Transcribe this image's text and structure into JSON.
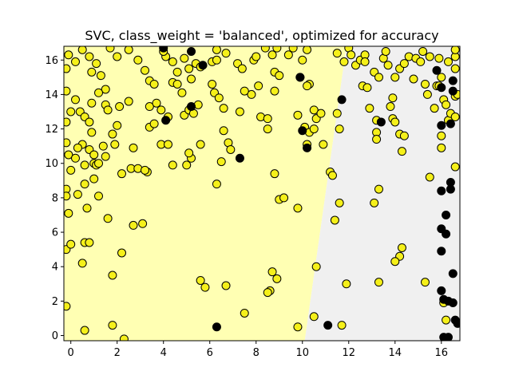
{
  "chart_data": {
    "type": "scatter",
    "title": "SVC, class_weight = 'balanced', optimized for accuracy",
    "xlabel": "",
    "ylabel": "",
    "xlim": [
      -0.3,
      16.8
    ],
    "ylim": [
      -0.3,
      16.8
    ],
    "x_ticks": [
      0,
      2,
      4,
      6,
      8,
      10,
      12,
      14,
      16
    ],
    "y_ticks": [
      0,
      2,
      4,
      6,
      8,
      10,
      12,
      14,
      16
    ],
    "grid": false,
    "colors": {
      "majority_point": "#f5f01a",
      "minority_point": "#000000",
      "majority_region": "#ffffb3",
      "minority_region": "#f0f0f0",
      "point_edge": "#000000"
    },
    "decision_boundary": [
      [
        10.1,
        -0.3
      ],
      [
        11.9,
        16.8
      ]
    ],
    "series": [
      {
        "points": [
          [
            -0.2,
            15.5
          ],
          [
            -0.1,
            16.3
          ],
          [
            -0.2,
            14.2
          ],
          [
            0.0,
            13.0
          ],
          [
            -0.2,
            12.4
          ],
          [
            -0.2,
            11.2
          ],
          [
            -0.1,
            10.5
          ],
          [
            0.0,
            9.6
          ],
          [
            0.2,
            10.3
          ],
          [
            -0.2,
            8.5
          ],
          [
            -0.2,
            8.1
          ],
          [
            0.3,
            8.2
          ],
          [
            -0.1,
            7.1
          ],
          [
            -0.2,
            5.0
          ],
          [
            0.0,
            5.3
          ],
          [
            0.6,
            5.4
          ],
          [
            0.8,
            5.4
          ],
          [
            0.5,
            4.2
          ],
          [
            0.6,
            0.3
          ],
          [
            -0.2,
            1.7
          ],
          [
            0.2,
            13.7
          ],
          [
            0.4,
            13.0
          ],
          [
            0.6,
            12.7
          ],
          [
            0.8,
            12.4
          ],
          [
            0.9,
            11.8
          ],
          [
            0.5,
            11.1
          ],
          [
            0.3,
            10.9
          ],
          [
            0.8,
            10.8
          ],
          [
            1.0,
            10.5
          ],
          [
            0.6,
            9.9
          ],
          [
            1.0,
            10.0
          ],
          [
            1.1,
            9.9
          ],
          [
            1.0,
            9.1
          ],
          [
            0.6,
            8.8
          ],
          [
            1.2,
            8.1
          ],
          [
            0.7,
            7.4
          ],
          [
            1.6,
            6.8
          ],
          [
            2.2,
            4.8
          ],
          [
            1.8,
            3.5
          ],
          [
            1.8,
            0.6
          ],
          [
            2.3,
            -0.2
          ],
          [
            0.2,
            15.9
          ],
          [
            0.5,
            16.6
          ],
          [
            0.8,
            16.2
          ],
          [
            1.1,
            15.8
          ],
          [
            0.9,
            15.3
          ],
          [
            1.3,
            15.1
          ],
          [
            1.5,
            14.3
          ],
          [
            1.2,
            14.1
          ],
          [
            0.9,
            13.5
          ],
          [
            1.5,
            13.4
          ],
          [
            1.6,
            13.1
          ],
          [
            2.1,
            13.3
          ],
          [
            2.5,
            13.6
          ],
          [
            2.0,
            12.2
          ],
          [
            1.8,
            11.7
          ],
          [
            1.9,
            11.1
          ],
          [
            1.4,
            11.0
          ],
          [
            1.5,
            10.4
          ],
          [
            1.2,
            10.0
          ],
          [
            2.2,
            9.4
          ],
          [
            2.6,
            9.7
          ],
          [
            2.9,
            9.7
          ],
          [
            3.3,
            9.5
          ],
          [
            3.2,
            9.6
          ],
          [
            2.7,
            6.4
          ],
          [
            3.1,
            6.5
          ],
          [
            2.7,
            10.9
          ],
          [
            1.7,
            16.7
          ],
          [
            2.0,
            16.2
          ],
          [
            2.5,
            16.6
          ],
          [
            2.9,
            16.0
          ],
          [
            3.2,
            15.4
          ],
          [
            3.4,
            14.8
          ],
          [
            3.6,
            14.6
          ],
          [
            3.4,
            13.3
          ],
          [
            3.7,
            13.5
          ],
          [
            3.9,
            13.1
          ],
          [
            3.4,
            12.1
          ],
          [
            3.6,
            12.3
          ],
          [
            4.2,
            12.7
          ],
          [
            3.9,
            11.1
          ],
          [
            4.2,
            11.1
          ],
          [
            4.4,
            9.9
          ],
          [
            5.0,
            9.9
          ],
          [
            5.2,
            10.3
          ],
          [
            5.1,
            10.6
          ],
          [
            5.6,
            11.1
          ],
          [
            4.4,
            14.7
          ],
          [
            4.6,
            14.6
          ],
          [
            4.8,
            14.1
          ],
          [
            4.9,
            12.8
          ],
          [
            5.1,
            13.1
          ],
          [
            5.3,
            12.9
          ],
          [
            5.5,
            13.4
          ],
          [
            4.9,
            16.1
          ],
          [
            5.1,
            15.5
          ],
          [
            5.4,
            15.8
          ],
          [
            5.6,
            15.6
          ],
          [
            5.2,
            14.9
          ],
          [
            4.1,
            16.2
          ],
          [
            4.0,
            16.5
          ],
          [
            4.4,
            15.9
          ],
          [
            4.6,
            15.3
          ],
          [
            6.1,
            15.9
          ],
          [
            6.3,
            16.6
          ],
          [
            6.7,
            16.4
          ],
          [
            6.1,
            14.6
          ],
          [
            6.2,
            14.1
          ],
          [
            6.4,
            13.8
          ],
          [
            6.6,
            13.2
          ],
          [
            6.8,
            11.2
          ],
          [
            6.9,
            10.8
          ],
          [
            6.5,
            10.1
          ],
          [
            6.6,
            11.9
          ],
          [
            6.3,
            8.8
          ],
          [
            5.6,
            3.2
          ],
          [
            5.8,
            2.8
          ],
          [
            6.7,
            2.9
          ],
          [
            7.5,
            1.3
          ],
          [
            6.3,
            16.0
          ],
          [
            7.2,
            15.8
          ],
          [
            7.4,
            15.5
          ],
          [
            7.9,
            16.0
          ],
          [
            8.0,
            16.2
          ],
          [
            8.4,
            16.7
          ],
          [
            7.8,
            14.0
          ],
          [
            8.1,
            14.5
          ],
          [
            8.2,
            12.7
          ],
          [
            8.5,
            12.6
          ],
          [
            8.5,
            12.0
          ],
          [
            7.5,
            14.2
          ],
          [
            7.3,
            13.0
          ],
          [
            8.7,
            16.3
          ],
          [
            8.9,
            16.7
          ],
          [
            8.8,
            15.3
          ],
          [
            9.0,
            15.1
          ],
          [
            8.8,
            14.2
          ],
          [
            9.4,
            16.3
          ],
          [
            9.6,
            16.7
          ],
          [
            10.0,
            16.0
          ],
          [
            10.2,
            16.6
          ],
          [
            8.8,
            9.4
          ],
          [
            9.0,
            7.9
          ],
          [
            9.2,
            8.0
          ],
          [
            8.7,
            3.7
          ],
          [
            8.9,
            3.3
          ],
          [
            8.6,
            2.6
          ],
          [
            8.5,
            2.5
          ],
          [
            9.8,
            7.4
          ],
          [
            9.8,
            0.5
          ],
          [
            10.1,
            12.1
          ],
          [
            10.2,
            11.1
          ],
          [
            10.3,
            11.8
          ],
          [
            10.5,
            12.0
          ],
          [
            10.6,
            12.6
          ],
          [
            10.5,
            13.1
          ],
          [
            10.3,
            14.6
          ],
          [
            10.6,
            4.0
          ],
          [
            10.5,
            1.1
          ],
          [
            9.8,
            12.8
          ],
          [
            9.9,
            15.0
          ],
          [
            10.2,
            14.5
          ],
          [
            10.8,
            12.9
          ],
          [
            10.9,
            11.1
          ],
          [
            11.2,
            9.5
          ],
          [
            11.3,
            9.3
          ],
          [
            11.4,
            6.7
          ],
          [
            11.6,
            7.7
          ],
          [
            11.5,
            12.9
          ],
          [
            11.6,
            12.0
          ],
          [
            11.5,
            16.4
          ],
          [
            11.8,
            15.9
          ],
          [
            11.7,
            0.6
          ],
          [
            11.9,
            3.0
          ],
          [
            12.0,
            16.7
          ],
          [
            12.1,
            16.3
          ],
          [
            12.3,
            15.7
          ],
          [
            12.5,
            16.0
          ],
          [
            12.7,
            16.3
          ],
          [
            12.7,
            15.9
          ],
          [
            12.6,
            14.5
          ],
          [
            12.8,
            14.4
          ],
          [
            12.9,
            13.2
          ],
          [
            13.2,
            12.5
          ],
          [
            13.2,
            11.8
          ],
          [
            13.2,
            11.4
          ],
          [
            13.3,
            8.5
          ],
          [
            13.1,
            7.7
          ],
          [
            13.3,
            3.1
          ],
          [
            13.1,
            15.3
          ],
          [
            13.3,
            15.0
          ],
          [
            13.5,
            16.1
          ],
          [
            13.6,
            16.5
          ],
          [
            13.7,
            15.7
          ],
          [
            14.0,
            15.0
          ],
          [
            13.9,
            13.8
          ],
          [
            13.8,
            13.3
          ],
          [
            13.9,
            12.6
          ],
          [
            14.0,
            12.4
          ],
          [
            14.2,
            11.7
          ],
          [
            14.4,
            11.6
          ],
          [
            14.3,
            10.7
          ],
          [
            14.3,
            5.1
          ],
          [
            14.2,
            4.6
          ],
          [
            14.0,
            4.3
          ],
          [
            14.2,
            15.5
          ],
          [
            14.4,
            15.8
          ],
          [
            14.6,
            16.2
          ],
          [
            14.8,
            14.9
          ],
          [
            14.9,
            16.1
          ],
          [
            15.1,
            15.9
          ],
          [
            15.2,
            16.5
          ],
          [
            15.3,
            14.6
          ],
          [
            15.4,
            14.0
          ],
          [
            15.5,
            16.2
          ],
          [
            15.5,
            9.2
          ],
          [
            15.3,
            3.1
          ],
          [
            15.7,
            13.2
          ],
          [
            15.8,
            14.5
          ],
          [
            16.0,
            15.0
          ],
          [
            15.9,
            16.1
          ],
          [
            15.9,
            14.5
          ],
          [
            16.1,
            13.7
          ],
          [
            16.3,
            15.9
          ],
          [
            16.2,
            13.4
          ],
          [
            16.3,
            12.5
          ],
          [
            16.4,
            12.9
          ],
          [
            16.0,
            11.6
          ],
          [
            16.0,
            10.9
          ],
          [
            16.6,
            12.7
          ],
          [
            16.6,
            13.9
          ],
          [
            16.7,
            14.0
          ],
          [
            16.6,
            9.8
          ],
          [
            16.1,
            1.9
          ],
          [
            16.2,
            0.9
          ],
          [
            16.6,
            15.5
          ],
          [
            16.6,
            16.2
          ],
          [
            16.6,
            16.6
          ]
        ]
      },
      {
        "points": [
          [
            4.0,
            16.7
          ],
          [
            5.7,
            15.7
          ],
          [
            5.2,
            13.3
          ],
          [
            4.1,
            12.5
          ],
          [
            5.2,
            16.5
          ],
          [
            7.3,
            10.3
          ],
          [
            6.3,
            0.5
          ],
          [
            9.9,
            15.0
          ],
          [
            10.0,
            11.9
          ],
          [
            10.2,
            10.9
          ],
          [
            11.1,
            0.6
          ],
          [
            11.7,
            13.7
          ],
          [
            13.4,
            12.4
          ],
          [
            16.0,
            12.2
          ],
          [
            16.4,
            12.3
          ],
          [
            16.5,
            14.8
          ],
          [
            16.5,
            14.2
          ],
          [
            16.4,
            8.9
          ],
          [
            16.4,
            8.5
          ],
          [
            16.0,
            8.4
          ],
          [
            16.2,
            7.0
          ],
          [
            16.0,
            6.2
          ],
          [
            16.2,
            5.9
          ],
          [
            16.0,
            4.9
          ],
          [
            16.5,
            3.6
          ],
          [
            16.0,
            2.6
          ],
          [
            16.1,
            2.1
          ],
          [
            16.3,
            2.0
          ],
          [
            16.5,
            1.9
          ],
          [
            16.1,
            -0.1
          ],
          [
            16.3,
            -0.1
          ],
          [
            16.6,
            0.9
          ],
          [
            16.7,
            0.7
          ],
          [
            15.8,
            15.4
          ],
          [
            16.0,
            14.4
          ]
        ]
      }
    ]
  }
}
